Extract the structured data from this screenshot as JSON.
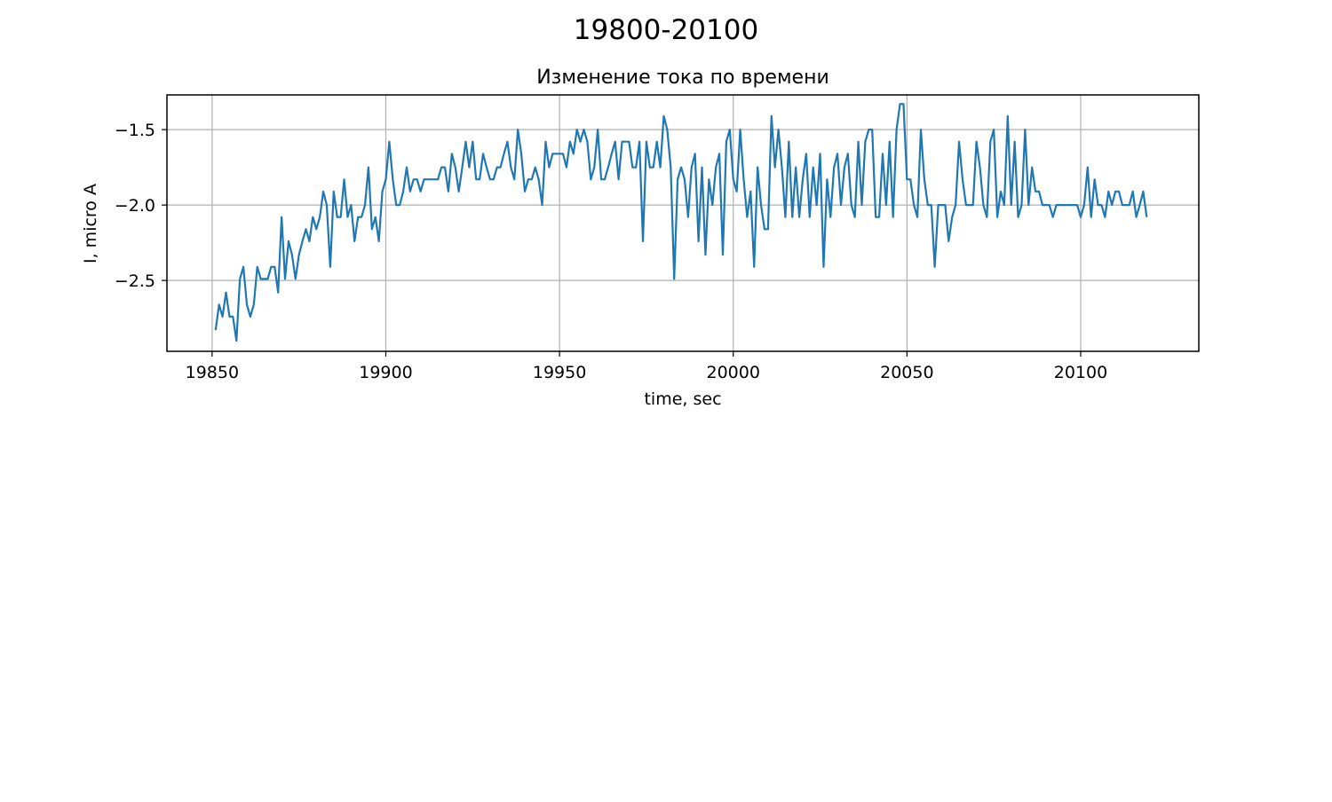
{
  "figure": {
    "suptitle": "19800-20100"
  },
  "chart_data": {
    "type": "line",
    "title": "Изменение тока по времени",
    "xlabel": "time, sec",
    "ylabel": "I, micro A",
    "xlim": [
      19837,
      20134
    ],
    "ylim": [
      -2.97,
      -1.27
    ],
    "xticks": [
      19850,
      19900,
      19950,
      20000,
      20050,
      20100
    ],
    "yticks": [
      -2.5,
      -2.0,
      -1.5
    ],
    "ytick_labels": [
      "−2.5",
      "−2.0",
      "−1.5"
    ],
    "grid": true,
    "line_color": "#1f77b4",
    "series": [
      {
        "x_start": 19851,
        "x_step": 1,
        "values": [
          -2.83,
          -2.66,
          -2.74,
          -2.58,
          -2.74,
          -2.74,
          -2.9,
          -2.49,
          -2.41,
          -2.66,
          -2.74,
          -2.66,
          -2.41,
          -2.49,
          -2.49,
          -2.49,
          -2.41,
          -2.41,
          -2.58,
          -2.08,
          -2.49,
          -2.24,
          -2.33,
          -2.49,
          -2.33,
          -2.24,
          -2.16,
          -2.24,
          -2.08,
          -2.16,
          -2.08,
          -1.91,
          -2.0,
          -2.41,
          -1.91,
          -2.08,
          -2.08,
          -1.83,
          -2.08,
          -2.0,
          -2.24,
          -2.08,
          -2.08,
          -2.0,
          -1.75,
          -2.16,
          -2.08,
          -2.24,
          -1.91,
          -1.83,
          -1.58,
          -1.83,
          -2.0,
          -2.0,
          -1.91,
          -1.75,
          -1.91,
          -1.83,
          -1.83,
          -1.91,
          -1.83,
          -1.83,
          -1.83,
          -1.83,
          -1.83,
          -1.75,
          -1.75,
          -1.91,
          -1.66,
          -1.75,
          -1.91,
          -1.75,
          -1.58,
          -1.75,
          -1.58,
          -1.83,
          -1.83,
          -1.66,
          -1.75,
          -1.83,
          -1.83,
          -1.75,
          -1.75,
          -1.66,
          -1.58,
          -1.75,
          -1.83,
          -1.5,
          -1.66,
          -1.91,
          -1.83,
          -1.83,
          -1.75,
          -1.83,
          -2.0,
          -1.58,
          -1.75,
          -1.66,
          -1.66,
          -1.66,
          -1.66,
          -1.75,
          -1.58,
          -1.66,
          -1.5,
          -1.58,
          -1.5,
          -1.58,
          -1.83,
          -1.75,
          -1.5,
          -1.83,
          -1.83,
          -1.75,
          -1.66,
          -1.58,
          -1.83,
          -1.58,
          -1.58,
          -1.58,
          -1.75,
          -1.75,
          -1.58,
          -2.24,
          -1.58,
          -1.75,
          -1.75,
          -1.58,
          -1.75,
          -1.41,
          -1.5,
          -1.75,
          -2.49,
          -1.83,
          -1.75,
          -1.83,
          -2.08,
          -1.75,
          -1.66,
          -2.24,
          -1.75,
          -2.33,
          -1.83,
          -2.0,
          -1.75,
          -1.66,
          -2.33,
          -1.58,
          -1.5,
          -1.83,
          -1.91,
          -1.5,
          -1.83,
          -2.08,
          -1.91,
          -2.41,
          -1.75,
          -2.0,
          -2.16,
          -2.16,
          -1.41,
          -1.75,
          -1.5,
          -1.75,
          -2.08,
          -1.58,
          -2.08,
          -1.75,
          -2.08,
          -1.83,
          -1.66,
          -2.08,
          -1.75,
          -2.0,
          -1.66,
          -2.41,
          -1.83,
          -2.08,
          -1.75,
          -1.66,
          -2.0,
          -1.75,
          -1.66,
          -2.0,
          -2.08,
          -1.58,
          -2.0,
          -1.58,
          -1.5,
          -1.5,
          -2.08,
          -2.08,
          -1.66,
          -2.0,
          -1.58,
          -2.08,
          -1.5,
          -1.33,
          -1.33,
          -1.83,
          -1.83,
          -2.0,
          -2.08,
          -1.5,
          -1.83,
          -2.0,
          -2.0,
          -2.41,
          -2.0,
          -2.0,
          -2.0,
          -2.24,
          -2.08,
          -2.0,
          -1.58,
          -1.83,
          -2.0,
          -2.0,
          -2.0,
          -1.58,
          -1.75,
          -2.0,
          -2.08,
          -1.58,
          -1.5,
          -2.08,
          -1.91,
          -2.0,
          -1.41,
          -2.0,
          -1.58,
          -2.08,
          -2.0,
          -1.5,
          -2.0,
          -1.75,
          -1.91,
          -1.91,
          -2.0,
          -2.0,
          -2.0,
          -2.08,
          -2.0,
          -2.0,
          -2.0,
          -2.0,
          -2.0,
          -2.0,
          -2.0,
          -2.08,
          -2.0,
          -1.75,
          -2.08,
          -1.83,
          -2.0,
          -2.0,
          -2.08,
          -1.91,
          -2.0,
          -1.91,
          -1.91,
          -2.0,
          -2.0,
          -2.0,
          -1.91,
          -2.08,
          -2.0,
          -1.91,
          -2.08
        ]
      }
    ]
  }
}
